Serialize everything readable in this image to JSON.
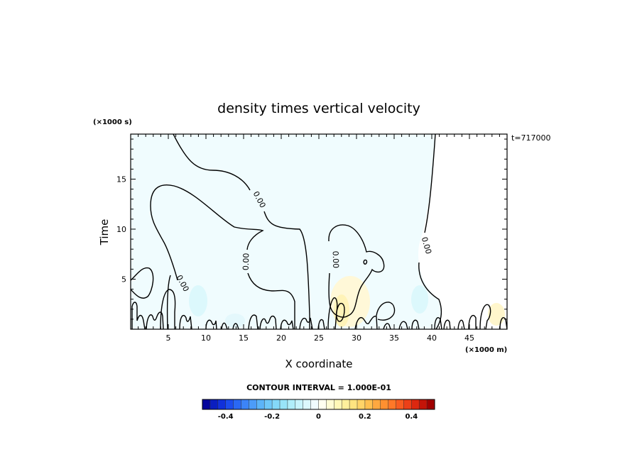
{
  "chart_data": {
    "type": "contour",
    "title": "density times vertical velocity",
    "xlabel": "X coordinate",
    "ylabel": "Time",
    "x_unit": "(×1000 m)",
    "y_unit": "(×1000 s)",
    "time_stamp": "t=717000",
    "xlim": [
      0,
      50
    ],
    "ylim": [
      0,
      19.5
    ],
    "x_ticks": [
      5,
      10,
      15,
      20,
      25,
      30,
      35,
      40,
      45
    ],
    "x_tick_labels": [
      "5",
      "10",
      "15",
      "20",
      "25",
      "30",
      "35",
      "40",
      "45"
    ],
    "y_ticks": [
      5,
      10,
      15
    ],
    "y_tick_labels": [
      "5",
      "10",
      "15"
    ],
    "contour_interval_text": "CONTOUR INTERVAL = 1.000E-01",
    "contour_level_labels": [
      "0.00",
      "0.00",
      "0.00",
      "0.00",
      "0.00"
    ],
    "colorbar": {
      "min": -0.5,
      "max": 0.5,
      "bins": 30,
      "ticks": [
        -0.4,
        -0.2,
        0,
        0.2,
        0.4
      ],
      "tick_labels": [
        "-0.4",
        "-0.2",
        "0",
        "0.2",
        "0.4"
      ],
      "colors": [
        "#05059c",
        "#0a1ec0",
        "#1030dc",
        "#1c4cee",
        "#2a68f4",
        "#3c84f8",
        "#4c9cf8",
        "#5cb4f8",
        "#70c8f8",
        "#84d8f8",
        "#98e4f8",
        "#b0eefa",
        "#c8f4fc",
        "#dcf8fc",
        "#f0fcfe",
        "#fffff0",
        "#fffcd4",
        "#fff8b8",
        "#fff09c",
        "#ffe480",
        "#ffd468",
        "#ffc050",
        "#ffa840",
        "#ff9030",
        "#ff7828",
        "#f85c20",
        "#ec4018",
        "#dc2810",
        "#c41408",
        "#a00000"
      ]
    },
    "colors": {
      "background_field": "#f0fcfe",
      "weak_positive": "#fff6c0",
      "moderate_positive": "#fff0a8",
      "weak_negative": "#dcf8fc",
      "contour_line": "#000000"
    }
  }
}
